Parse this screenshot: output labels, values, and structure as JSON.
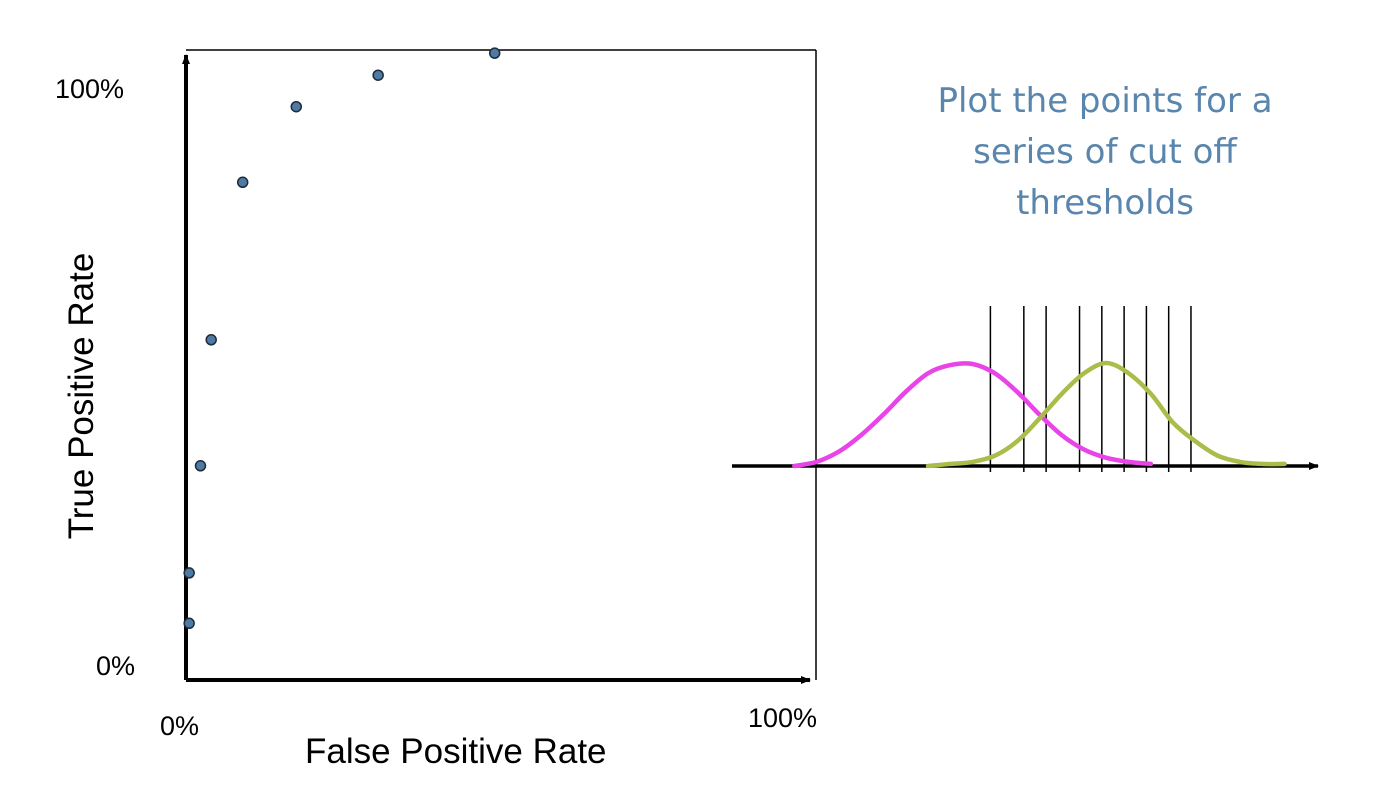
{
  "chart_data": [
    {
      "type": "scatter",
      "title": "",
      "xlabel": "False Positive Rate",
      "ylabel": "True Positive Rate",
      "x_tick_labels": [
        "0%",
        "100%"
      ],
      "y_tick_labels": [
        "0%",
        "100%"
      ],
      "xlim": [
        0,
        100
      ],
      "ylim": [
        0,
        100
      ],
      "grid": false,
      "point_color": "#4f7aa3",
      "points": [
        {
          "x": 0.5,
          "y": 9
        },
        {
          "x": 0.5,
          "y": 17
        },
        {
          "x": 2.3,
          "y": 34
        },
        {
          "x": 4.0,
          "y": 54
        },
        {
          "x": 9.0,
          "y": 79
        },
        {
          "x": 17.5,
          "y": 91
        },
        {
          "x": 30.5,
          "y": 96
        },
        {
          "x": 49.0,
          "y": 99.5
        }
      ]
    },
    {
      "type": "line",
      "title": "",
      "xlabel": "",
      "ylabel": "",
      "grid": false,
      "xlim": [
        -1,
        23.5
      ],
      "ylim": [
        0,
        1.05
      ],
      "x": [
        0,
        1,
        2,
        3,
        4,
        5,
        6,
        7,
        8,
        9,
        10,
        11,
        12,
        13,
        14,
        15,
        16,
        17,
        18,
        19,
        20,
        21,
        22
      ],
      "series": [
        {
          "color": "#e844e8",
          "values": [
            0,
            0.04,
            0.14,
            0.3,
            0.5,
            0.72,
            0.9,
            0.98,
            0.99,
            0.9,
            0.72,
            0.5,
            0.3,
            0.16,
            0.08,
            0.04,
            0.02,
            null,
            null,
            null,
            null,
            null,
            null
          ]
        },
        {
          "color": "#a9bd4a",
          "values": [
            null,
            null,
            null,
            null,
            null,
            null,
            0,
            0.02,
            0.04,
            0.1,
            0.24,
            0.46,
            0.7,
            0.9,
            1.0,
            0.9,
            0.7,
            0.42,
            0.24,
            0.1,
            0.04,
            0.02,
            0.02
          ]
        }
      ],
      "thresholds": [
        8.8,
        10.3,
        11.3,
        12.8,
        13.8,
        14.8,
        15.8,
        16.8,
        17.8
      ]
    }
  ],
  "labels": {
    "y_top": "100%",
    "y_bottom": "0%",
    "x_left": "0%",
    "x_right": "100%",
    "x_title": "False Positive Rate",
    "y_title": "True Positive Rate"
  },
  "caption": "Plot the points for a series of cut off thresholds"
}
